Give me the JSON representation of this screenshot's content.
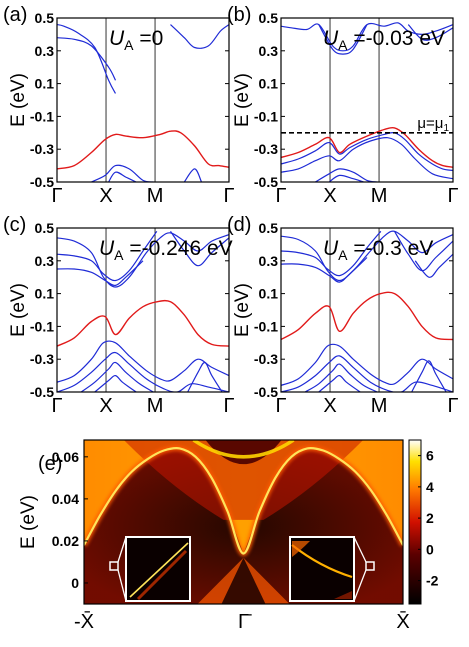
{
  "chart_data": [
    {
      "type": "line",
      "panel": "(a)",
      "annotation": "U_A = 0",
      "ann_main": "U",
      "ann_sub": "A",
      "ann_rest": " =0",
      "ylabel": "E (eV)",
      "ylim": [
        -0.5,
        0.5
      ],
      "yticks": [
        "0.5",
        "0.3",
        "0.1",
        "-0.1",
        "-0.3",
        "-0.5"
      ],
      "xticks": [
        "Γ",
        "X",
        "M",
        "Γ"
      ],
      "series": [
        {
          "color": "#1f2bd6",
          "x": [
            0,
            0.04,
            0.12,
            0.22,
            0.3,
            0.34
          ],
          "y": [
            0.46,
            0.45,
            0.41,
            0.32,
            0.12,
            0.04
          ]
        },
        {
          "color": "#1f2bd6",
          "x": [
            0,
            0.1,
            0.2,
            0.3,
            0.34
          ],
          "y": [
            0.38,
            0.37,
            0.33,
            0.2,
            0.12
          ]
        },
        {
          "color": "#1f2bd6",
          "x": [
            0.66,
            0.74,
            0.8,
            0.88,
            0.95,
            1.0
          ],
          "y": [
            0.46,
            0.38,
            0.32,
            0.33,
            0.42,
            0.46
          ]
        },
        {
          "color": "#e11a1a",
          "x": [
            0,
            0.1,
            0.2,
            0.28,
            0.34,
            0.4,
            0.5,
            0.6,
            0.66,
            0.72,
            0.8,
            0.88,
            0.94,
            1.0
          ],
          "y": [
            -0.42,
            -0.4,
            -0.32,
            -0.24,
            -0.21,
            -0.22,
            -0.23,
            -0.21,
            -0.19,
            -0.2,
            -0.28,
            -0.39,
            -0.4,
            -0.41
          ]
        },
        {
          "color": "#1f2bd6",
          "x": [
            0.2,
            0.28,
            0.34,
            0.42,
            0.5,
            0.56
          ],
          "y": [
            -0.5,
            -0.46,
            -0.4,
            -0.42,
            -0.49,
            -0.5
          ]
        },
        {
          "color": "#1f2bd6",
          "x": [
            0.3,
            0.34,
            0.4,
            0.46
          ],
          "y": [
            -0.5,
            -0.44,
            -0.47,
            -0.5
          ]
        },
        {
          "color": "#1f2bd6",
          "x": [
            0.74,
            0.8,
            0.84
          ],
          "y": [
            -0.5,
            -0.42,
            -0.5
          ]
        }
      ]
    },
    {
      "type": "line",
      "panel": "(b)",
      "annotation": "U_A = -0.03 eV",
      "ann_main": "U",
      "ann_sub": "A",
      "ann_rest": " =-0.03 eV",
      "ylabel": "E (eV)",
      "ylim": [
        -0.5,
        0.5
      ],
      "yticks": [
        "0.5",
        "0.3",
        "0.1",
        "-0.1",
        "-0.3",
        "-0.5"
      ],
      "xticks": [
        "Γ",
        "X",
        "M",
        "Γ"
      ],
      "reference_line": {
        "y": -0.2,
        "label": "μ=μ1",
        "label_main": "μ=μ",
        "label_sub": "1"
      },
      "series": [
        {
          "color": "#1f2bd6",
          "x": [
            0,
            0.06,
            0.15,
            0.22,
            0.3,
            0.36,
            0.42,
            0.5,
            0.6,
            0.68,
            0.74,
            0.82,
            0.9,
            1.0
          ],
          "y": [
            0.45,
            0.44,
            0.43,
            0.46,
            0.33,
            0.3,
            0.33,
            0.46,
            0.45,
            0.47,
            0.42,
            0.4,
            0.42,
            0.46
          ]
        },
        {
          "color": "#1f2bd6",
          "x": [
            0.22,
            0.3,
            0.36,
            0.42,
            0.5
          ],
          "y": [
            0.46,
            0.31,
            0.28,
            0.31,
            0.46
          ]
        },
        {
          "color": "#1f2bd6",
          "x": [
            0.74,
            0.82,
            0.9,
            1.0
          ],
          "y": [
            0.46,
            0.37,
            0.38,
            0.44
          ]
        },
        {
          "color": "#e11a1a",
          "x": [
            0,
            0.1,
            0.2,
            0.28,
            0.34,
            0.4,
            0.5,
            0.6,
            0.66,
            0.72,
            0.8,
            0.88,
            0.94,
            1.0
          ],
          "y": [
            -0.35,
            -0.32,
            -0.27,
            -0.23,
            -0.32,
            -0.27,
            -0.22,
            -0.18,
            -0.17,
            -0.21,
            -0.3,
            -0.37,
            -0.4,
            -0.41
          ]
        },
        {
          "color": "#1f2bd6",
          "x": [
            0,
            0.1,
            0.2,
            0.28,
            0.34,
            0.4,
            0.5,
            0.6,
            0.66,
            0.72,
            0.8,
            0.88,
            0.94,
            1.0
          ],
          "y": [
            -0.39,
            -0.36,
            -0.31,
            -0.26,
            -0.33,
            -0.29,
            -0.24,
            -0.21,
            -0.2,
            -0.24,
            -0.33,
            -0.39,
            -0.42,
            -0.43
          ]
        },
        {
          "color": "#1f2bd6",
          "x": [
            0,
            0.1,
            0.2,
            0.28,
            0.34,
            0.42,
            0.52,
            0.62,
            0.7,
            0.78,
            0.88,
            1.0
          ],
          "y": [
            -0.44,
            -0.42,
            -0.37,
            -0.34,
            -0.37,
            -0.3,
            -0.25,
            -0.23,
            -0.27,
            -0.36,
            -0.45,
            -0.48
          ]
        },
        {
          "color": "#1f2bd6",
          "x": [
            0.2,
            0.28,
            0.34,
            0.42,
            0.5,
            0.56
          ],
          "y": [
            -0.5,
            -0.45,
            -0.42,
            -0.44,
            -0.49,
            -0.5
          ]
        },
        {
          "color": "#1f2bd6",
          "x": [
            0.28,
            0.34,
            0.42,
            0.48
          ],
          "y": [
            -0.5,
            -0.46,
            -0.48,
            -0.5
          ]
        }
      ]
    },
    {
      "type": "line",
      "panel": "(c)",
      "annotation": "U_A = -0.246 eV",
      "ann_main": "U",
      "ann_sub": "A",
      "ann_rest": " =-0.246 eV",
      "ylabel": "E (eV)",
      "ylim": [
        -0.5,
        0.5
      ],
      "yticks": [
        "0.5",
        "0.3",
        "0.1",
        "-0.1",
        "-0.3",
        "-0.5"
      ],
      "xticks": [
        "Γ",
        "X",
        "M",
        "Γ"
      ],
      "series": [
        {
          "color": "#1f2bd6",
          "x": [
            0,
            0.1,
            0.2,
            0.27,
            0.34,
            0.42,
            0.52,
            0.6,
            0.66,
            0.74,
            0.82,
            0.9,
            1.0
          ],
          "y": [
            0.44,
            0.42,
            0.35,
            0.2,
            0.14,
            0.2,
            0.35,
            0.44,
            0.47,
            0.42,
            0.36,
            0.42,
            0.46
          ]
        },
        {
          "color": "#1f2bd6",
          "x": [
            0,
            0.1,
            0.2,
            0.27,
            0.34,
            0.42,
            0.5,
            0.58
          ],
          "y": [
            0.34,
            0.33,
            0.3,
            0.22,
            0.18,
            0.24,
            0.36,
            0.48
          ]
        },
        {
          "color": "#1f2bd6",
          "x": [
            0,
            0.1,
            0.2,
            0.28,
            0.34,
            0.4,
            0.5
          ],
          "y": [
            0.25,
            0.25,
            0.23,
            0.18,
            0.15,
            0.2,
            0.3
          ]
        },
        {
          "color": "#1f2bd6",
          "x": [
            0.66,
            0.74,
            0.82,
            0.9,
            1.0
          ],
          "y": [
            0.48,
            0.36,
            0.27,
            0.35,
            0.44
          ]
        },
        {
          "color": "#e11a1a",
          "x": [
            0,
            0.1,
            0.2,
            0.28,
            0.34,
            0.42,
            0.5,
            0.58,
            0.66,
            0.74,
            0.82,
            0.9,
            1.0
          ],
          "y": [
            -0.22,
            -0.17,
            -0.07,
            -0.04,
            -0.15,
            -0.05,
            0.02,
            0.05,
            0.05,
            -0.03,
            -0.15,
            -0.21,
            -0.22
          ]
        },
        {
          "color": "#1f2bd6",
          "x": [
            0,
            0.1,
            0.2,
            0.27,
            0.34,
            0.42,
            0.52,
            0.6,
            0.66,
            0.74,
            0.82,
            0.9,
            1.0
          ],
          "y": [
            -0.44,
            -0.4,
            -0.3,
            -0.2,
            -0.2,
            -0.28,
            -0.37,
            -0.42,
            -0.43,
            -0.37,
            -0.3,
            -0.35,
            -0.4
          ]
        },
        {
          "color": "#1f2bd6",
          "x": [
            0,
            0.1,
            0.2,
            0.28,
            0.34,
            0.42,
            0.52,
            0.62,
            0.7,
            0.78,
            0.88,
            1.0
          ],
          "y": [
            -0.5,
            -0.46,
            -0.38,
            -0.3,
            -0.26,
            -0.33,
            -0.42,
            -0.48,
            -0.5,
            -0.45,
            -0.47,
            -0.5
          ]
        },
        {
          "color": "#1f2bd6",
          "x": [
            0.14,
            0.22,
            0.3,
            0.34,
            0.4,
            0.48,
            0.56
          ],
          "y": [
            -0.5,
            -0.44,
            -0.36,
            -0.32,
            -0.38,
            -0.45,
            -0.5
          ]
        },
        {
          "color": "#1f2bd6",
          "x": [
            0.22,
            0.3,
            0.34,
            0.38,
            0.46
          ],
          "y": [
            -0.5,
            -0.43,
            -0.4,
            -0.44,
            -0.5
          ]
        },
        {
          "color": "#1f2bd6",
          "x": [
            0.76,
            0.82,
            0.86,
            0.9,
            0.96
          ],
          "y": [
            -0.5,
            -0.38,
            -0.32,
            -0.4,
            -0.5
          ]
        }
      ]
    },
    {
      "type": "line",
      "panel": "(d)",
      "annotation": "U_A = -0.3 eV",
      "ann_main": "U",
      "ann_sub": "A",
      "ann_rest": " =-0.3 eV",
      "ylabel": "E (eV)",
      "ylim": [
        -0.5,
        0.5
      ],
      "yticks": [
        "0.5",
        "0.3",
        "0.1",
        "-0.1",
        "-0.3",
        "-0.5"
      ],
      "xticks": [
        "Γ",
        "X",
        "M",
        "Γ"
      ],
      "series": [
        {
          "color": "#1f2bd6",
          "x": [
            0,
            0.1,
            0.2,
            0.27,
            0.34,
            0.42,
            0.52,
            0.6,
            0.66,
            0.74,
            0.82,
            0.9,
            1.0
          ],
          "y": [
            0.45,
            0.43,
            0.36,
            0.24,
            0.18,
            0.24,
            0.36,
            0.45,
            0.48,
            0.42,
            0.35,
            0.41,
            0.46
          ]
        },
        {
          "color": "#1f2bd6",
          "x": [
            0,
            0.1,
            0.2,
            0.27,
            0.34,
            0.42,
            0.5,
            0.58
          ],
          "y": [
            0.36,
            0.35,
            0.32,
            0.25,
            0.21,
            0.27,
            0.38,
            0.48
          ]
        },
        {
          "color": "#1f2bd6",
          "x": [
            0,
            0.1,
            0.2,
            0.28,
            0.34,
            0.4,
            0.5
          ],
          "y": [
            0.28,
            0.28,
            0.26,
            0.21,
            0.17,
            0.22,
            0.32
          ]
        },
        {
          "color": "#1f2bd6",
          "x": [
            0.66,
            0.74,
            0.82,
            0.9,
            1.0
          ],
          "y": [
            0.48,
            0.34,
            0.24,
            0.32,
            0.42
          ]
        },
        {
          "color": "#1f2bd6",
          "x": [
            0.78,
            0.86,
            0.92,
            1.0
          ],
          "y": [
            0.3,
            0.2,
            0.26,
            0.34
          ]
        },
        {
          "color": "#e11a1a",
          "x": [
            0,
            0.1,
            0.2,
            0.28,
            0.34,
            0.42,
            0.5,
            0.58,
            0.66,
            0.74,
            0.82,
            0.9,
            1.0
          ],
          "y": [
            -0.18,
            -0.12,
            -0.02,
            0.02,
            -0.13,
            -0.02,
            0.06,
            0.1,
            0.1,
            0.02,
            -0.1,
            -0.17,
            -0.18
          ]
        },
        {
          "color": "#1f2bd6",
          "x": [
            0,
            0.1,
            0.2,
            0.27,
            0.34,
            0.42,
            0.52,
            0.6,
            0.66,
            0.74,
            0.82,
            0.9,
            1.0
          ],
          "y": [
            -0.46,
            -0.42,
            -0.32,
            -0.22,
            -0.22,
            -0.3,
            -0.39,
            -0.44,
            -0.45,
            -0.38,
            -0.3,
            -0.36,
            -0.42
          ]
        },
        {
          "color": "#1f2bd6",
          "x": [
            0,
            0.1,
            0.2,
            0.28,
            0.34,
            0.42,
            0.52,
            0.62,
            0.7,
            0.78,
            0.88,
            1.0
          ],
          "y": [
            -0.5,
            -0.47,
            -0.4,
            -0.32,
            -0.28,
            -0.35,
            -0.44,
            -0.49,
            -0.5,
            -0.44,
            -0.46,
            -0.5
          ]
        },
        {
          "color": "#1f2bd6",
          "x": [
            0.14,
            0.22,
            0.3,
            0.34,
            0.4,
            0.48,
            0.56
          ],
          "y": [
            -0.5,
            -0.45,
            -0.37,
            -0.33,
            -0.39,
            -0.46,
            -0.5
          ]
        },
        {
          "color": "#1f2bd6",
          "x": [
            0.22,
            0.3,
            0.34,
            0.38,
            0.46
          ],
          "y": [
            -0.5,
            -0.43,
            -0.4,
            -0.44,
            -0.5
          ]
        },
        {
          "color": "#1f2bd6",
          "x": [
            0.76,
            0.82,
            0.86,
            0.9,
            0.96
          ],
          "y": [
            -0.5,
            -0.38,
            -0.31,
            -0.39,
            -0.5
          ]
        }
      ]
    },
    {
      "type": "heatmap",
      "panel": "(e)",
      "ylabel": "E (eV)",
      "ylim": [
        -0.01,
        0.068
      ],
      "yticks": [
        "0.06",
        "0.04",
        "0.02",
        "0"
      ],
      "xticks": [
        "-X̄",
        "Γ̄",
        "X̄"
      ],
      "colorbar": {
        "min": -3.5,
        "max": 7,
        "ticks": [
          "6",
          "4",
          "2",
          "0",
          "-2"
        ]
      },
      "surface_state": {
        "color": "#ffe45a",
        "x": [
          -1,
          -0.9,
          -0.8,
          -0.7,
          -0.6,
          -0.5,
          -0.4,
          -0.3,
          -0.2,
          -0.1,
          0,
          0.1,
          0.2,
          0.3,
          0.4,
          0.5,
          0.6,
          0.7,
          0.8,
          0.9,
          1.0
        ],
        "y": [
          0.018,
          0.032,
          0.044,
          0.053,
          0.059,
          0.063,
          0.064,
          0.06,
          0.05,
          0.034,
          0.014,
          0.034,
          0.05,
          0.06,
          0.064,
          0.063,
          0.059,
          0.053,
          0.044,
          0.032,
          0.018
        ]
      },
      "insets": [
        {
          "position": "left"
        },
        {
          "position": "right"
        }
      ]
    }
  ]
}
